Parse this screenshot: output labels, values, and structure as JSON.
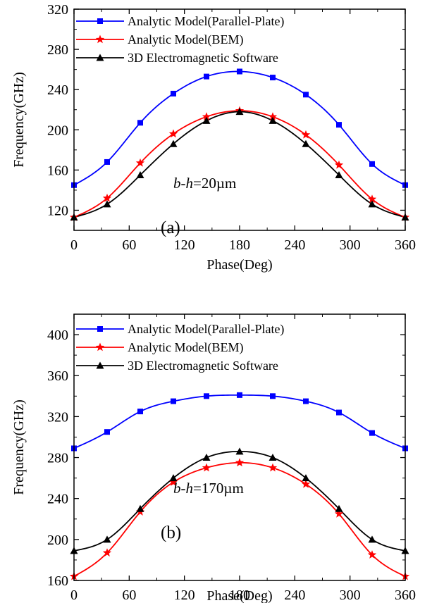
{
  "chart_data": [
    {
      "type": "line",
      "panel_label": "(a)",
      "annotation": {
        "italic_part": "b-h",
        "rest": "=20µm"
      },
      "xlabel": "Phase(Deg)",
      "ylabel": "Frequency(GHz)",
      "xlim": [
        0,
        360
      ],
      "ylim": [
        100,
        320
      ],
      "x_ticks": [
        0,
        60,
        120,
        180,
        240,
        300,
        360
      ],
      "y_ticks": [
        120,
        160,
        200,
        240,
        280,
        320
      ],
      "legend_position": "top-left",
      "grid": false,
      "series": [
        {
          "name": "Analytic Model(Parallel-Plate)",
          "color": "#0000ff",
          "marker": "square",
          "x": [
            0,
            36,
            72,
            108,
            144,
            180,
            216,
            252,
            288,
            324,
            360
          ],
          "y": [
            145,
            168,
            207,
            236,
            253,
            258,
            252,
            235,
            205,
            166,
            145
          ]
        },
        {
          "name": "Analytic Model(BEM)",
          "color": "#ff0000",
          "marker": "star",
          "x": [
            0,
            36,
            72,
            108,
            144,
            180,
            216,
            252,
            288,
            324,
            360
          ],
          "y": [
            113,
            132,
            167,
            196,
            213,
            219,
            213,
            195,
            165,
            131,
            113
          ]
        },
        {
          "name": "3D Electromagnetic Software",
          "color": "#000000",
          "marker": "triangle",
          "x": [
            0,
            36,
            72,
            108,
            144,
            180,
            216,
            252,
            288,
            324,
            360
          ],
          "y": [
            113,
            126,
            155,
            186,
            209,
            218,
            209,
            186,
            155,
            126,
            113
          ]
        }
      ]
    },
    {
      "type": "line",
      "panel_label": "(b)",
      "annotation": {
        "italic_part": "b-h",
        "rest": "=170µm"
      },
      "xlabel": "Phase(Deg)",
      "ylabel": "Frequency(GHz)",
      "xlim": [
        0,
        360
      ],
      "ylim": [
        160,
        420
      ],
      "x_ticks": [
        0,
        60,
        120,
        180,
        240,
        300,
        360
      ],
      "y_ticks": [
        160,
        200,
        240,
        280,
        320,
        360,
        400
      ],
      "legend_position": "top-left",
      "grid": false,
      "series": [
        {
          "name": "Analytic Model(Parallel-Plate)",
          "color": "#0000ff",
          "marker": "square",
          "x": [
            0,
            36,
            72,
            108,
            144,
            180,
            216,
            252,
            288,
            324,
            360
          ],
          "y": [
            289,
            305,
            325,
            335,
            340,
            341,
            340,
            335,
            324,
            304,
            289
          ]
        },
        {
          "name": "Analytic Model(BEM)",
          "color": "#ff0000",
          "marker": "star",
          "x": [
            0,
            36,
            72,
            108,
            144,
            180,
            216,
            252,
            288,
            324,
            360
          ],
          "y": [
            164,
            187,
            227,
            256,
            270,
            275,
            270,
            254,
            225,
            185,
            164
          ]
        },
        {
          "name": "3D Electromagnetic Software",
          "color": "#000000",
          "marker": "triangle",
          "x": [
            0,
            36,
            72,
            108,
            144,
            180,
            216,
            252,
            288,
            324,
            360
          ],
          "y": [
            189,
            200,
            230,
            260,
            280,
            286,
            280,
            260,
            230,
            200,
            189
          ]
        }
      ]
    }
  ]
}
